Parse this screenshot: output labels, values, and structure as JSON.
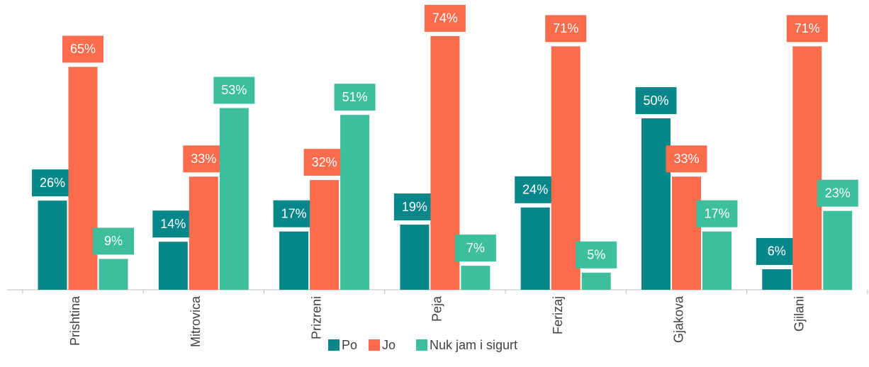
{
  "chart_data": {
    "type": "bar",
    "categories": [
      "Prishtina",
      "Mitrovica",
      "Prizreni",
      "Peja",
      "Ferizaj",
      "Gjakova",
      "Gjilani"
    ],
    "series": [
      {
        "name": "Po",
        "color": "#07878a",
        "values": [
          26,
          14,
          17,
          19,
          24,
          50,
          6
        ],
        "value_labels": [
          "26%",
          "14%",
          "17%",
          "19%",
          "24%",
          "50%",
          "6%"
        ]
      },
      {
        "name": "Jo",
        "color": "#fb6c4c",
        "values": [
          65,
          33,
          32,
          74,
          71,
          33,
          71
        ],
        "value_labels": [
          "65%",
          "33%",
          "32%",
          "74%",
          "71%",
          "33%",
          "71%"
        ]
      },
      {
        "name": "Nuk jam i sigurt",
        "color": "#3dbf9e",
        "values": [
          9,
          53,
          51,
          7,
          5,
          17,
          23
        ],
        "value_labels": [
          "9%",
          "53%",
          "51%",
          "7%",
          "5%",
          "17%",
          "23%"
        ]
      }
    ]
  }
}
